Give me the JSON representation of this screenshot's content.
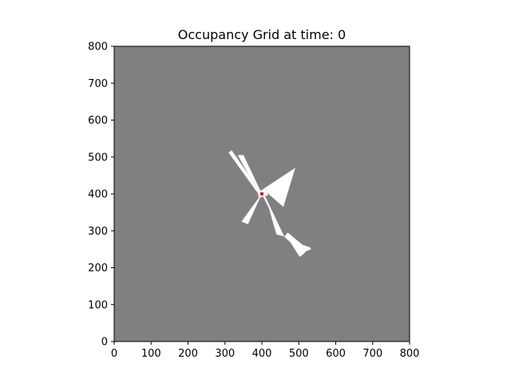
{
  "chart_data": {
    "type": "heatmap",
    "title": "Occupancy Grid at time: 0",
    "xlabel": "",
    "ylabel": "",
    "xlim": [
      0,
      800
    ],
    "ylim": [
      0,
      800
    ],
    "grid": false,
    "x_ticks": [
      "0",
      "100",
      "200",
      "300",
      "400",
      "500",
      "600",
      "700",
      "800"
    ],
    "y_ticks": [
      "0",
      "100",
      "200",
      "300",
      "400",
      "500",
      "600",
      "700",
      "800"
    ],
    "colors": {
      "unknown": "#808080",
      "free": "#ffffff",
      "occupied": "#000000",
      "robot": "#e41a1c"
    },
    "robot_position": [
      400,
      400
    ],
    "free_regions": [
      {
        "name": "ray-upper-left",
        "polygon": [
          [
            400,
            400
          ],
          [
            318,
            518
          ],
          [
            310,
            512
          ],
          [
            392,
            398
          ]
        ]
      },
      {
        "name": "ray-upper-left-2",
        "polygon": [
          [
            400,
            400
          ],
          [
            350,
            505
          ],
          [
            335,
            505
          ],
          [
            394,
            398
          ]
        ]
      },
      {
        "name": "ray-upper-right",
        "polygon": [
          [
            402,
            412
          ],
          [
            490,
            470
          ],
          [
            458,
            365
          ],
          [
            418,
            400
          ]
        ]
      },
      {
        "name": "ray-lower-left",
        "polygon": [
          [
            398,
            398
          ],
          [
            345,
            325
          ],
          [
            362,
            318
          ],
          [
            396,
            392
          ]
        ]
      },
      {
        "name": "ray-lower-right",
        "polygon": [
          [
            404,
            392
          ],
          [
            420,
            360
          ],
          [
            428,
            330
          ],
          [
            440,
            290
          ],
          [
            462,
            285
          ],
          [
            470,
            295
          ],
          [
            510,
            262
          ],
          [
            530,
            255
          ],
          [
            533,
            250
          ],
          [
            520,
            245
          ],
          [
            510,
            235
          ],
          [
            502,
            230
          ],
          [
            478,
            268
          ],
          [
            460,
            285
          ],
          [
            408,
            395
          ]
        ]
      },
      {
        "name": "core",
        "polygon": [
          [
            388,
            408
          ],
          [
            412,
            412
          ],
          [
            416,
            396
          ],
          [
            392,
            390
          ]
        ]
      }
    ]
  }
}
